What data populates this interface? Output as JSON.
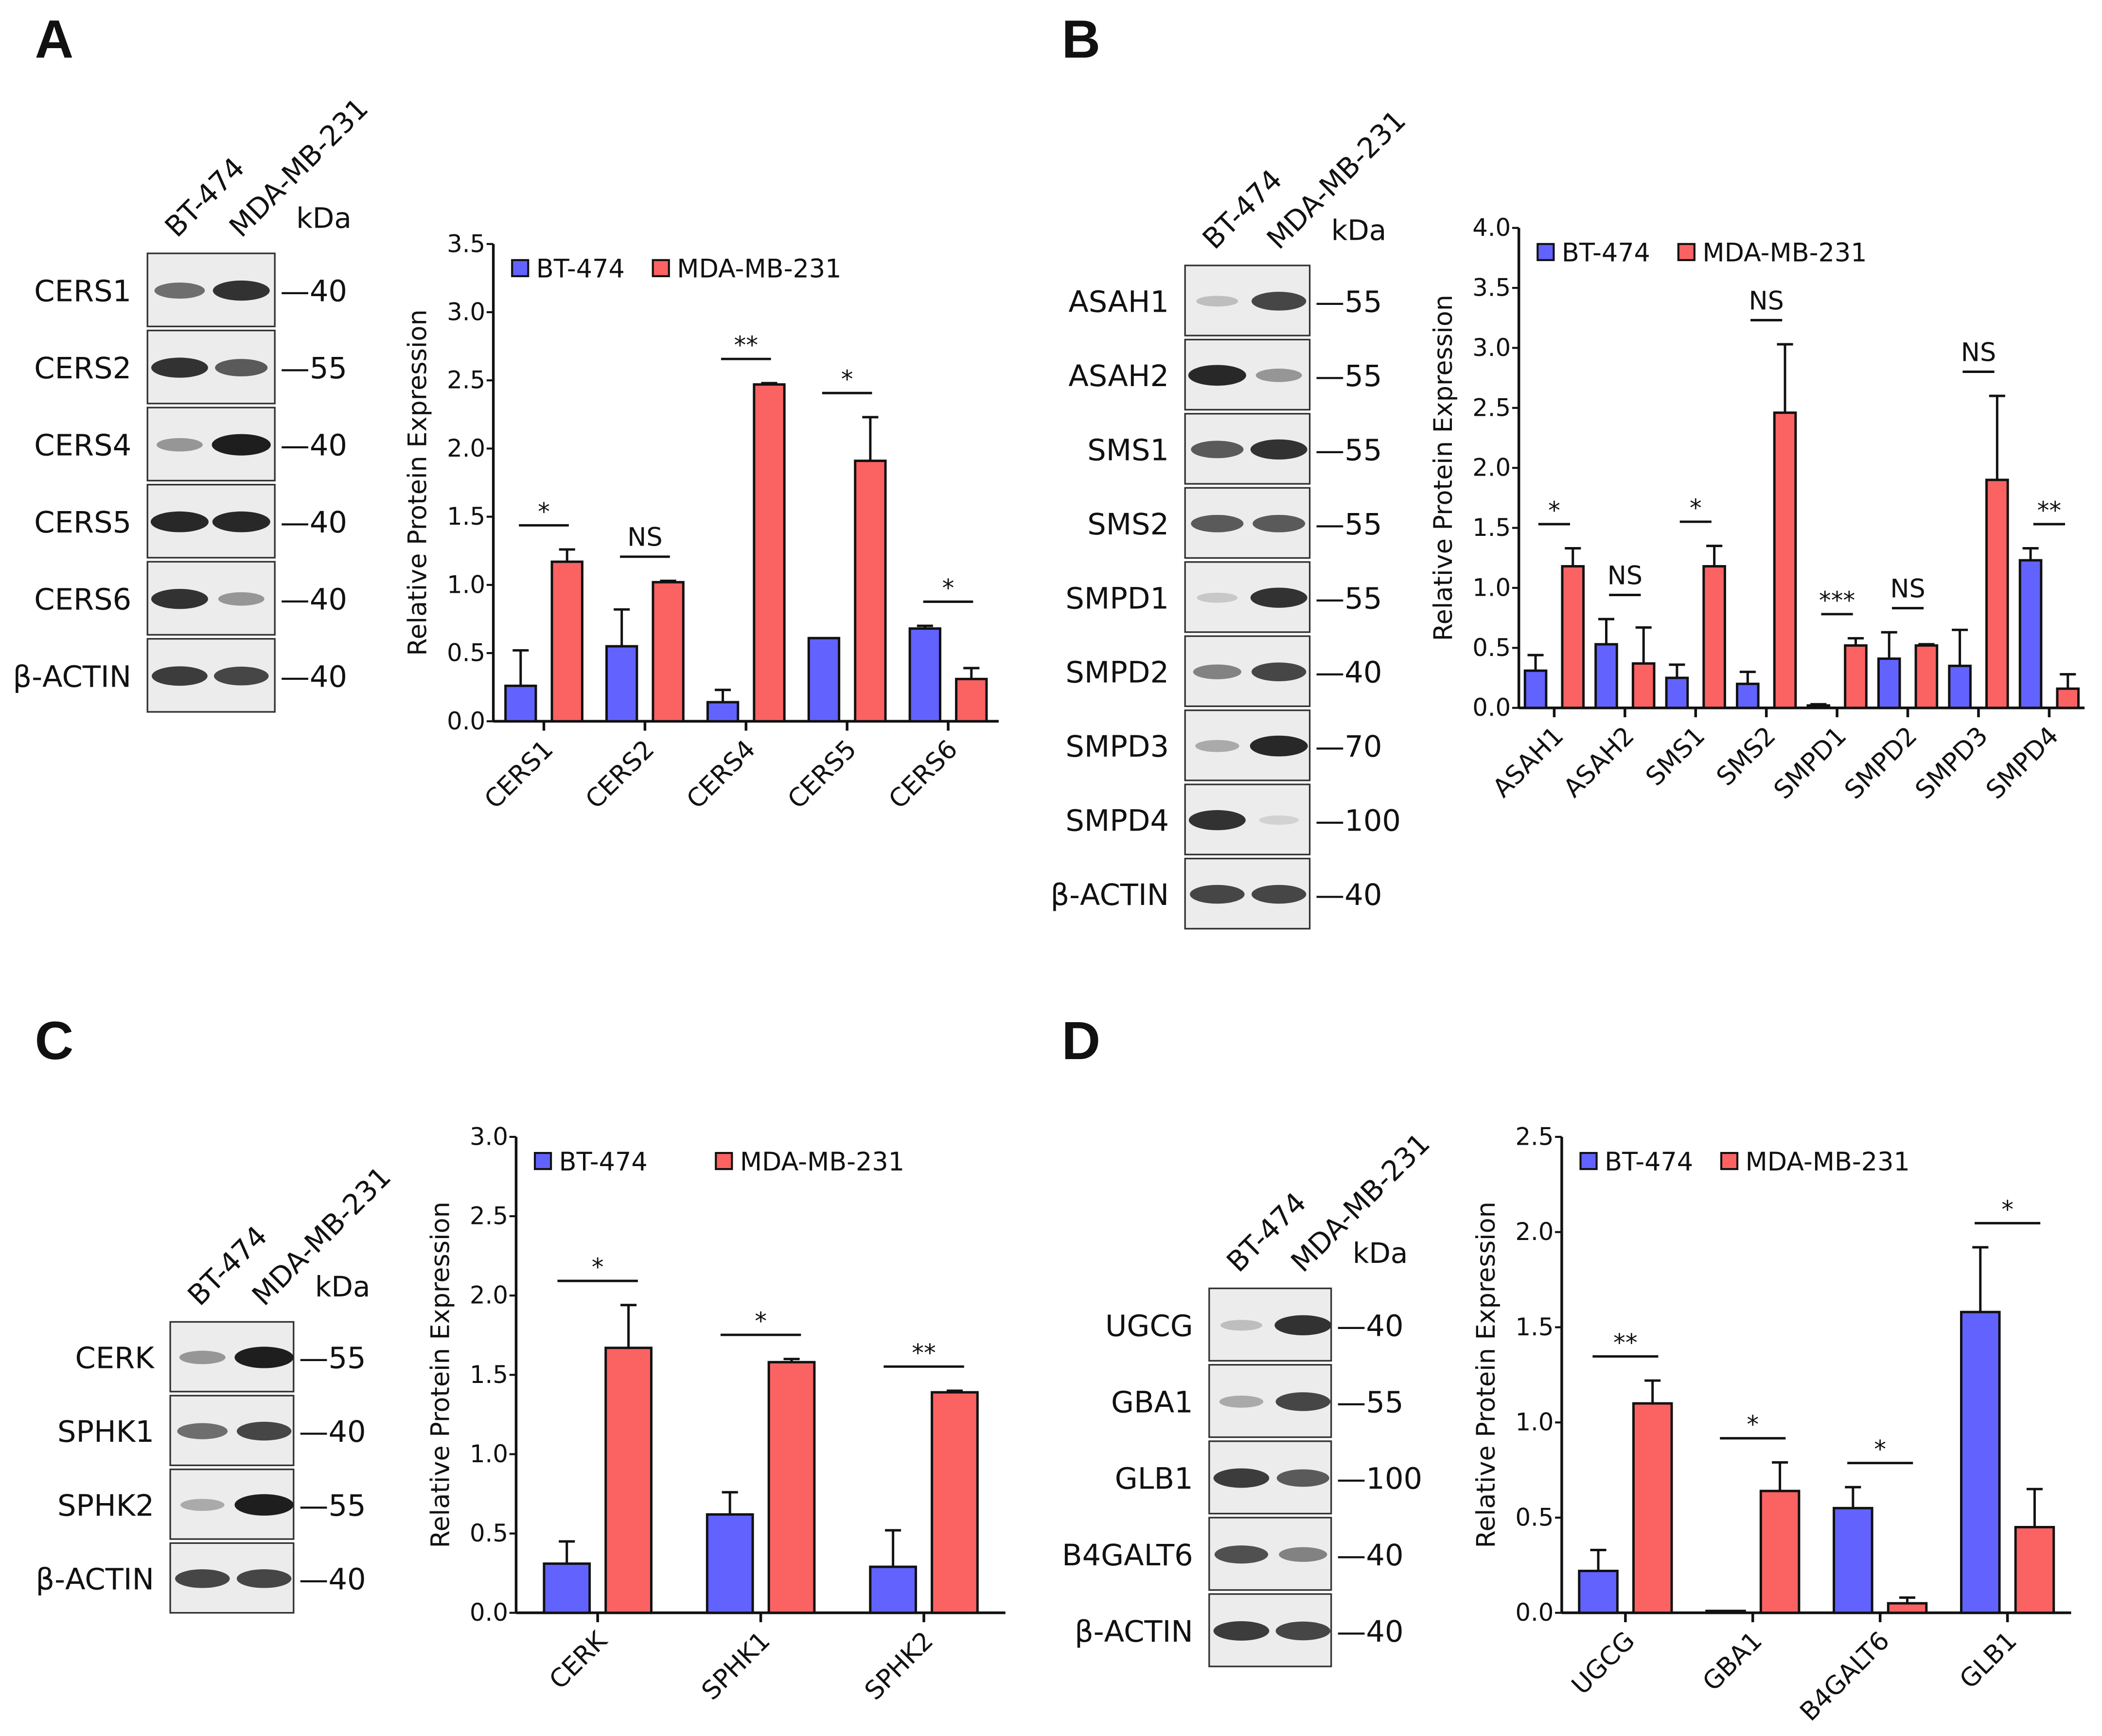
{
  "panels": [
    "A",
    "B",
    "C",
    "D"
  ],
  "colors": {
    "bt474": "#6262ff",
    "mda": "#fb6262"
  },
  "blots": [
    {
      "lanes": [
        "BT-474",
        "MDA-MB-231"
      ],
      "kda_label": "kDa",
      "rows": [
        {
          "name": "CERS1",
          "kda": "40",
          "bands": [
            0.6,
            0.9
          ]
        },
        {
          "name": "CERS2",
          "kda": "55",
          "bands": [
            0.9,
            0.7
          ]
        },
        {
          "name": "CERS4",
          "kda": "40",
          "bands": [
            0.4,
            1
          ]
        },
        {
          "name": "CERS5",
          "kda": "40",
          "bands": [
            0.95,
            0.95
          ]
        },
        {
          "name": "CERS6",
          "kda": "40",
          "bands": [
            0.9,
            0.4
          ]
        },
        {
          "name": "β-ACTIN",
          "kda": "40",
          "bands": [
            0.85,
            0.8
          ]
        }
      ]
    },
    {
      "lanes": [
        "BT-474",
        "MDA-MB-231"
      ],
      "kda_label": "kDa",
      "rows": [
        {
          "name": "ASAH1",
          "kda": "55",
          "bands": [
            0.2,
            0.8
          ]
        },
        {
          "name": "ASAH2",
          "kda": "55",
          "bands": [
            0.95,
            0.4
          ]
        },
        {
          "name": "SMS1",
          "kda": "55",
          "bands": [
            0.7,
            0.9
          ]
        },
        {
          "name": "SMS2",
          "kda": "55",
          "bands": [
            0.7,
            0.7
          ]
        },
        {
          "name": "SMPD1",
          "kda": "55",
          "bands": [
            0.15,
            0.9
          ]
        },
        {
          "name": "SMPD2",
          "kda": "40",
          "bands": [
            0.5,
            0.8
          ]
        },
        {
          "name": "SMPD3",
          "kda": "70",
          "bands": [
            0.3,
            0.95
          ]
        },
        {
          "name": "SMPD4",
          "kda": "100",
          "bands": [
            0.9,
            0.1
          ]
        },
        {
          "name": "β-ACTIN",
          "kda": "40",
          "bands": [
            0.8,
            0.8
          ]
        }
      ]
    },
    {
      "lanes": [
        "BT-474",
        "MDA-MB-231"
      ],
      "kda_label": "kDa",
      "rows": [
        {
          "name": "CERK",
          "kda": "55",
          "bands": [
            0.4,
            1
          ]
        },
        {
          "name": "SPHK1",
          "kda": "40",
          "bands": [
            0.6,
            0.8
          ]
        },
        {
          "name": "SPHK2",
          "kda": "55",
          "bands": [
            0.3,
            1
          ]
        },
        {
          "name": "β-ACTIN",
          "kda": "40",
          "bands": [
            0.8,
            0.8
          ]
        }
      ]
    },
    {
      "lanes": [
        "BT-474",
        "MDA-MB-231"
      ],
      "kda_label": "kDa",
      "rows": [
        {
          "name": "UGCG",
          "kda": "40",
          "bands": [
            0.2,
            0.9
          ]
        },
        {
          "name": "GBA1",
          "kda": "55",
          "bands": [
            0.3,
            0.8
          ]
        },
        {
          "name": "GLB1",
          "kda": "100",
          "bands": [
            0.85,
            0.7
          ]
        },
        {
          "name": "B4GALT6",
          "kda": "40",
          "bands": [
            0.75,
            0.5
          ]
        },
        {
          "name": "β-ACTIN",
          "kda": "40",
          "bands": [
            0.85,
            0.8
          ]
        }
      ]
    }
  ],
  "chart_data": [
    {
      "type": "bar",
      "title": "",
      "xlabel": "",
      "ylabel": "Relative Protein Expression",
      "ylim": [
        0,
        3.5
      ],
      "yticks": [
        "0.0",
        "0.5",
        "1.0",
        "1.5",
        "2.0",
        "2.5",
        "3.0",
        "3.5"
      ],
      "legend": "top-left",
      "categories": [
        "CERS1",
        "CERS2",
        "CERS4",
        "CERS5",
        "CERS6"
      ],
      "series": [
        {
          "name": "BT-474",
          "values": [
            0.26,
            0.55,
            0.14,
            0.61,
            0.68
          ],
          "error": [
            0.26,
            0.27,
            0.09,
            0.0,
            0.02
          ]
        },
        {
          "name": "MDA-MB-231",
          "values": [
            1.17,
            1.02,
            2.47,
            1.91,
            0.31
          ],
          "error": [
            0.09,
            0.01,
            0.01,
            0.32,
            0.08
          ]
        }
      ],
      "significance": [
        "*",
        "NS",
        "**",
        "*",
        "*"
      ]
    },
    {
      "type": "bar",
      "title": "",
      "xlabel": "",
      "ylabel": "Relative Protein Expression",
      "ylim": [
        0,
        4.0
      ],
      "yticks": [
        "0.0",
        "0.5",
        "1.0",
        "1.5",
        "2.0",
        "2.5",
        "3.0",
        "3.5",
        "4.0"
      ],
      "legend": "top-left",
      "categories": [
        "ASAH1",
        "ASAH2",
        "SMS1",
        "SMS2",
        "SMPD1",
        "SMPD2",
        "SMPD3",
        "SMPD4"
      ],
      "series": [
        {
          "name": "BT-474",
          "values": [
            0.31,
            0.53,
            0.25,
            0.2,
            0.02,
            0.41,
            0.35,
            1.23
          ],
          "error": [
            0.13,
            0.21,
            0.11,
            0.1,
            0.01,
            0.22,
            0.3,
            0.1
          ]
        },
        {
          "name": "MDA-MB-231",
          "values": [
            1.18,
            0.37,
            1.18,
            2.46,
            0.52,
            0.52,
            1.9,
            0.16
          ],
          "error": [
            0.15,
            0.3,
            0.17,
            0.57,
            0.06,
            0.01,
            0.7,
            0.12
          ]
        }
      ],
      "significance": [
        "*",
        "NS",
        "*",
        "NS",
        "***",
        "NS",
        "NS",
        "**"
      ]
    },
    {
      "type": "bar",
      "title": "",
      "xlabel": "",
      "ylabel": "Relative Protein Expression",
      "ylim": [
        0,
        3.0
      ],
      "yticks": [
        "0.0",
        "0.5",
        "1.0",
        "1.5",
        "2.0",
        "2.5",
        "3.0"
      ],
      "legend": "top-left",
      "categories": [
        "CERK",
        "SPHK1",
        "SPHK2"
      ],
      "series": [
        {
          "name": "BT-474",
          "values": [
            0.31,
            0.62,
            0.29
          ],
          "error": [
            0.14,
            0.14,
            0.23
          ]
        },
        {
          "name": "MDA-MB-231",
          "values": [
            1.67,
            1.58,
            1.39
          ],
          "error": [
            0.27,
            0.02,
            0.01
          ]
        }
      ],
      "significance": [
        "*",
        "*",
        "**"
      ]
    },
    {
      "type": "bar",
      "title": "",
      "xlabel": "",
      "ylabel": "Relative Protein Expression",
      "ylim": [
        0,
        2.5
      ],
      "yticks": [
        "0.0",
        "0.5",
        "1.0",
        "1.5",
        "2.0",
        "2.5"
      ],
      "legend": "top-left",
      "categories": [
        "UGCG",
        "GBA1",
        "B4GALT6",
        "GLB1"
      ],
      "series": [
        {
          "name": "BT-474",
          "values": [
            0.22,
            0.01,
            0.55,
            1.58
          ],
          "error": [
            0.11,
            0.0,
            0.11,
            0.34
          ]
        },
        {
          "name": "MDA-MB-231",
          "values": [
            1.1,
            0.64,
            0.05,
            0.45
          ],
          "error": [
            0.12,
            0.15,
            0.03,
            0.2
          ]
        }
      ],
      "significance": [
        "**",
        "*",
        "*",
        "*"
      ]
    }
  ]
}
